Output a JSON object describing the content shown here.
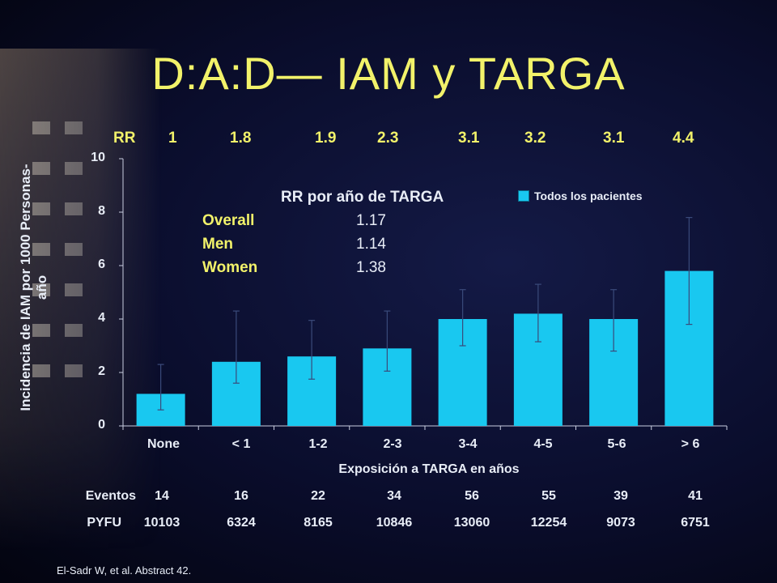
{
  "slide": {
    "title": "D:A:D— IAM y TARGA",
    "footnote": "El-Sadr W, et al. Abstract 42."
  },
  "rr_row": {
    "label": "RR",
    "values": [
      "1",
      "1.8",
      "1.9",
      "2.3",
      "3.1",
      "3.2",
      "3.1",
      "4.4"
    ]
  },
  "inset": {
    "title": "RR por año de TARGA",
    "rows": [
      {
        "label": "Overall",
        "value": "1.17"
      },
      {
        "label": "Men",
        "value": "1.14"
      },
      {
        "label": "Women",
        "value": "1.38"
      }
    ]
  },
  "events_row": {
    "label": "Eventos",
    "values": [
      "14",
      "16",
      "22",
      "34",
      "56",
      "55",
      "39",
      "41"
    ]
  },
  "pyfu_row": {
    "label": "PYFU",
    "values": [
      "10103",
      "6324",
      "8165",
      "10846",
      "13060",
      "12254",
      "9073",
      "6751"
    ]
  },
  "chart_data": {
    "type": "bar",
    "categories": [
      "None",
      "< 1",
      "1-2",
      "2-3",
      "3-4",
      "4-5",
      "5-6",
      "> 6"
    ],
    "series": [
      {
        "name": "Todos los pacientes",
        "values": [
          1.2,
          2.4,
          2.6,
          2.9,
          4.0,
          4.2,
          4.0,
          5.8
        ],
        "error_low": [
          0.6,
          1.6,
          1.75,
          2.05,
          3.0,
          3.15,
          2.8,
          3.8
        ],
        "error_high": [
          2.3,
          4.3,
          3.95,
          4.3,
          5.1,
          5.3,
          5.1,
          7.8
        ]
      }
    ],
    "xlabel": "Exposición a TARGA en años",
    "ylabel": "Incidencia de IAM por 1000 Personas-año",
    "ylim": [
      0,
      10
    ],
    "yticks": [
      "0",
      "2",
      "4",
      "6",
      "8",
      "10"
    ],
    "grid": false,
    "legend": "top-right",
    "bar_color": "#19c8f0"
  }
}
